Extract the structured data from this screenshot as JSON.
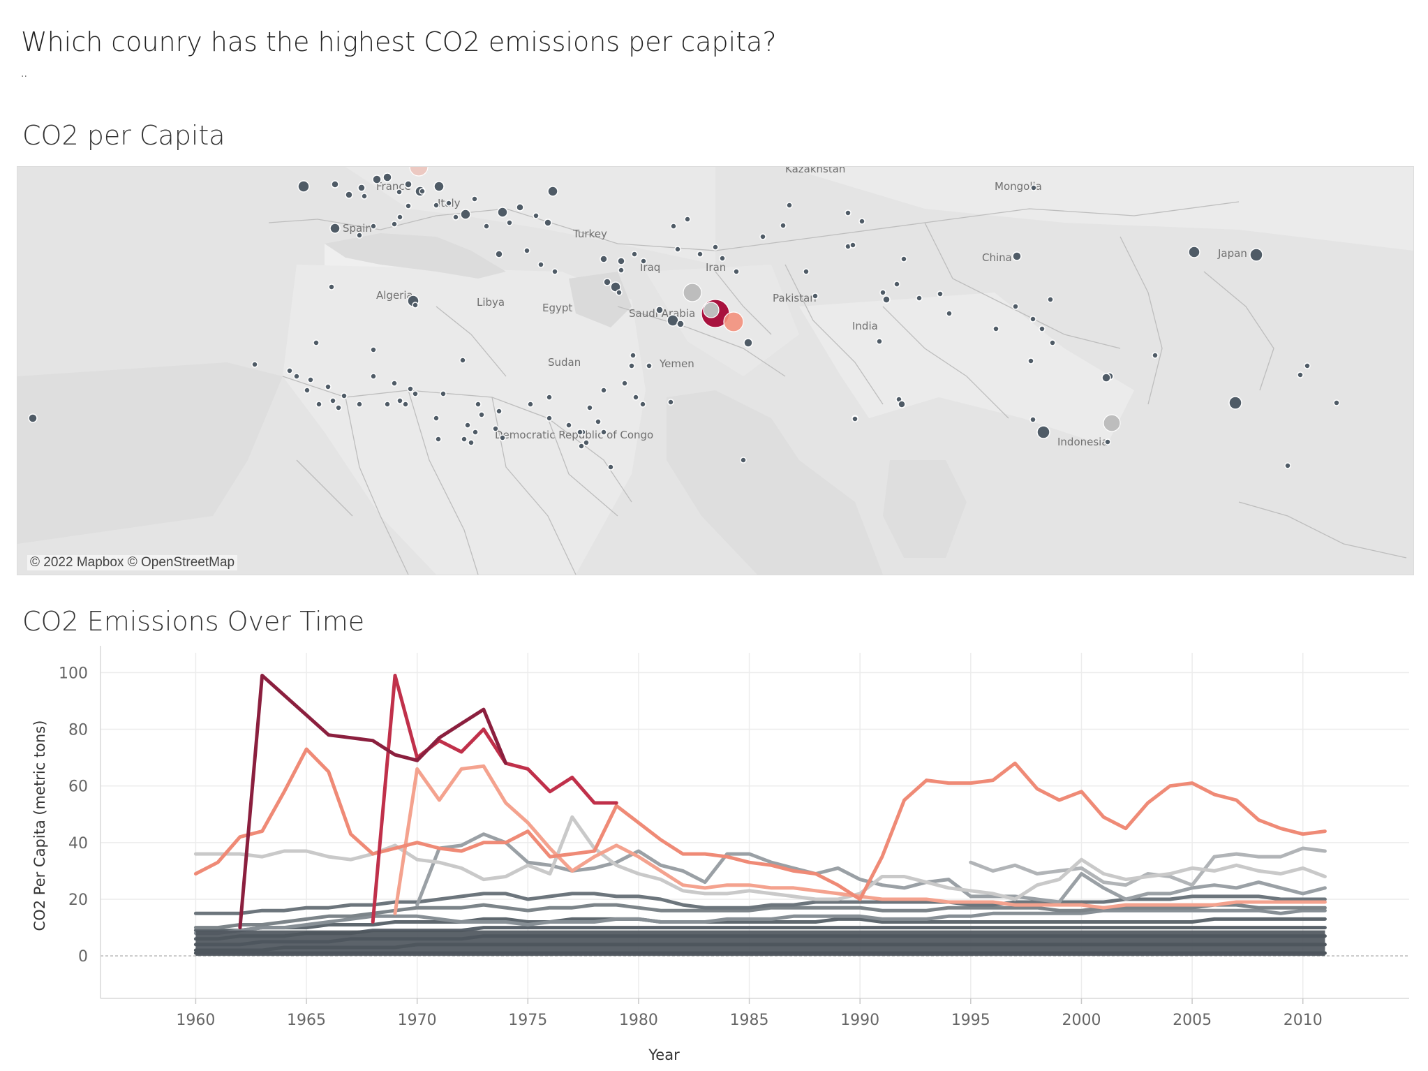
{
  "header": {
    "title": "Which counry has the highest CO2 emissions per capita?",
    "subtitle": ".."
  },
  "map": {
    "title": "CO2 per Capita",
    "attribution": "© 2022 Mapbox © OpenStreetMap",
    "labels": [
      "France",
      "Italy",
      "Spain",
      "Turkey",
      "Kazakhstan",
      "Mongolia",
      "China",
      "Japan",
      "Iraq",
      "Iran",
      "Algeria",
      "Libya",
      "Egypt",
      "Saudi Arabia",
      "Pakistan",
      "India",
      "Sudan",
      "Yemen",
      "Democratic Republic of Congo",
      "Indonesia"
    ],
    "colors": {
      "land": "#e4e4e4",
      "border": "#bdbdbd",
      "dot": "#4f5b66",
      "gray_bubble": "#bdbdbd",
      "hot": "#a8123e",
      "warm": "#f3907c"
    }
  },
  "chart_data": {
    "type": "line",
    "title": "CO2 Emissions Over Time",
    "xlabel": "Year",
    "ylabel": "CO2 Per Capita (metric tons)",
    "xlim": [
      1955.7,
      2014.8
    ],
    "ylim": [
      -15,
      107
    ],
    "xticks": [
      1960,
      1965,
      1970,
      1975,
      1980,
      1985,
      1990,
      1995,
      2000,
      2005,
      2010
    ],
    "yticks": [
      0,
      20,
      40,
      60,
      80,
      100
    ],
    "grid": true,
    "x": [
      1960,
      1961,
      1962,
      1963,
      1964,
      1965,
      1966,
      1967,
      1968,
      1969,
      1970,
      1971,
      1972,
      1973,
      1974,
      1975,
      1976,
      1977,
      1978,
      1979,
      1980,
      1981,
      1982,
      1983,
      1984,
      1985,
      1986,
      1987,
      1988,
      1989,
      1990,
      1991,
      1992,
      1993,
      1994,
      1995,
      1996,
      1997,
      1998,
      1999,
      2000,
      2001,
      2002,
      2003,
      2004,
      2005,
      2006,
      2007,
      2008,
      2009,
      2010,
      2011
    ],
    "series": [
      {
        "color": "#8b1f3e",
        "values": [
          null,
          null,
          10,
          99,
          92,
          85,
          78,
          77,
          76,
          71,
          69,
          77,
          82,
          87,
          68,
          null,
          null,
          null,
          null,
          null,
          null,
          null,
          null,
          null,
          null,
          null,
          null,
          null,
          null,
          null,
          null,
          null,
          null,
          null,
          null,
          null,
          null,
          null,
          null,
          null,
          null,
          null,
          null,
          null,
          null,
          null,
          null,
          null,
          null,
          null,
          null,
          null
        ]
      },
      {
        "color": "#c0304a",
        "values": [
          null,
          null,
          null,
          null,
          null,
          null,
          null,
          null,
          12,
          99,
          70,
          76,
          72,
          80,
          68,
          66,
          58,
          63,
          54,
          54,
          null,
          null,
          null,
          null,
          null,
          null,
          null,
          null,
          null,
          null,
          null,
          null,
          null,
          null,
          null,
          null,
          null,
          null,
          null,
          null,
          null,
          null,
          null,
          null,
          null,
          null,
          null,
          null,
          null,
          null,
          null,
          null
        ]
      },
      {
        "color": "#ef8a76",
        "values": [
          29,
          33,
          42,
          44,
          58,
          73,
          65,
          43,
          36,
          38,
          40,
          38,
          37,
          40,
          40,
          44,
          35,
          36,
          37,
          53,
          47,
          41,
          36,
          36,
          35,
          33,
          32,
          30,
          29,
          25,
          20,
          35,
          55,
          62,
          61,
          61,
          62,
          68,
          59,
          55,
          58,
          49,
          45,
          54,
          60,
          61,
          57,
          55,
          48,
          45,
          43,
          44
        ]
      },
      {
        "color": "#f4a28e",
        "values": [
          null,
          null,
          null,
          null,
          null,
          null,
          null,
          null,
          null,
          15,
          66,
          55,
          66,
          67,
          54,
          47,
          38,
          30,
          35,
          39,
          35,
          30,
          25,
          24,
          25,
          25,
          24,
          24,
          23,
          22,
          21,
          20,
          20,
          20,
          19,
          19,
          19,
          18,
          18,
          18,
          18,
          17,
          18,
          18,
          18,
          18,
          18,
          19,
          19,
          19,
          19,
          19
        ]
      },
      {
        "color": "#c9c9c9",
        "values": [
          36,
          36,
          36,
          35,
          37,
          37,
          35,
          34,
          36,
          39,
          34,
          33,
          31,
          27,
          28,
          32,
          29,
          49,
          38,
          32,
          29,
          27,
          23,
          22,
          22,
          23,
          22,
          21,
          20,
          20,
          22,
          28,
          28,
          26,
          24,
          23,
          22,
          20,
          25,
          27,
          34,
          29,
          27,
          28,
          29,
          31,
          30,
          32,
          30,
          29,
          31,
          28
        ]
      },
      {
        "color": "#b1b4b7",
        "values": [
          null,
          null,
          null,
          null,
          null,
          null,
          null,
          null,
          null,
          null,
          null,
          null,
          null,
          null,
          null,
          null,
          null,
          null,
          null,
          null,
          null,
          null,
          null,
          null,
          null,
          null,
          null,
          null,
          null,
          null,
          null,
          null,
          null,
          null,
          null,
          33,
          30,
          32,
          29,
          30,
          31,
          26,
          25,
          29,
          28,
          25,
          35,
          36,
          35,
          35,
          38,
          37
        ]
      },
      {
        "color": "#9aa0a5",
        "values": [
          null,
          null,
          null,
          null,
          null,
          null,
          null,
          null,
          null,
          null,
          18,
          38,
          39,
          43,
          40,
          33,
          32,
          30,
          31,
          33,
          37,
          32,
          30,
          26,
          36,
          36,
          33,
          31,
          29,
          31,
          27,
          25,
          24,
          26,
          27,
          21,
          21,
          21,
          20,
          19,
          29,
          24,
          20,
          22,
          22,
          24,
          25,
          24,
          26,
          24,
          22,
          24
        ]
      },
      {
        "color": "#6c757c",
        "values": [
          15,
          15,
          15,
          16,
          16,
          17,
          17,
          18,
          18,
          19,
          19,
          20,
          21,
          22,
          22,
          20,
          21,
          22,
          22,
          21,
          21,
          20,
          18,
          17,
          17,
          17,
          18,
          18,
          19,
          19,
          19,
          19,
          19,
          19,
          19,
          18,
          18,
          19,
          19,
          19,
          19,
          19,
          20,
          20,
          20,
          21,
          21,
          21,
          21,
          20,
          20,
          20
        ]
      },
      {
        "color": "#7c8489",
        "values": [
          10,
          10,
          11,
          11,
          12,
          13,
          14,
          14,
          15,
          16,
          17,
          17,
          17,
          18,
          17,
          16,
          17,
          17,
          18,
          18,
          17,
          16,
          16,
          16,
          16,
          16,
          17,
          17,
          17,
          17,
          17,
          16,
          16,
          16,
          17,
          17,
          17,
          17,
          17,
          16,
          16,
          17,
          17,
          17,
          17,
          17,
          18,
          18,
          17,
          17,
          17,
          17
        ]
      },
      {
        "color": "#878f95",
        "values": [
          8,
          8,
          9,
          10,
          10,
          11,
          12,
          13,
          14,
          14,
          14,
          13,
          12,
          12,
          12,
          11,
          12,
          12,
          12,
          13,
          13,
          12,
          12,
          12,
          13,
          13,
          13,
          14,
          14,
          14,
          14,
          13,
          13,
          13,
          14,
          14,
          15,
          15,
          15,
          15,
          15,
          16,
          16,
          16,
          16,
          16,
          16,
          16,
          16,
          15,
          16,
          16
        ]
      },
      {
        "color": "#5e676e",
        "values": [
          9,
          9,
          9,
          10,
          10,
          10,
          11,
          11,
          11,
          12,
          12,
          12,
          12,
          13,
          13,
          12,
          12,
          13,
          13,
          13,
          13,
          12,
          12,
          12,
          12,
          12,
          12,
          12,
          12,
          13,
          13,
          12,
          12,
          12,
          12,
          12,
          12,
          12,
          12,
          12,
          12,
          12,
          12,
          12,
          12,
          12,
          13,
          13,
          13,
          13,
          13,
          13
        ]
      },
      {
        "color": "#59626a",
        "values": [
          6,
          6,
          7,
          7,
          7,
          8,
          8,
          8,
          9,
          9,
          9,
          9,
          9,
          10,
          10,
          10,
          10,
          10,
          10,
          10,
          10,
          10,
          10,
          10,
          10,
          10,
          10,
          10,
          10,
          10,
          10,
          10,
          10,
          10,
          10,
          10,
          10,
          10,
          10,
          10,
          10,
          10,
          10,
          10,
          10,
          10,
          10,
          10,
          10,
          10,
          10,
          10
        ]
      },
      {
        "color": "#545c63",
        "values": [
          4,
          4,
          4,
          5,
          5,
          5,
          5,
          6,
          6,
          6,
          6,
          6,
          6,
          7,
          7,
          7,
          7,
          7,
          7,
          7,
          7,
          7,
          7,
          7,
          7,
          7,
          7,
          7,
          7,
          7,
          7,
          7,
          7,
          7,
          7,
          7,
          7,
          7,
          7,
          7,
          7,
          7,
          7,
          7,
          7,
          7,
          7,
          7,
          7,
          7,
          7,
          7
        ]
      },
      {
        "color": "#4f575e",
        "values": [
          2,
          2,
          2,
          2,
          3,
          3,
          3,
          3,
          3,
          3,
          4,
          4,
          4,
          4,
          4,
          4,
          4,
          4,
          4,
          4,
          4,
          4,
          4,
          4,
          4,
          4,
          4,
          4,
          4,
          4,
          4,
          4,
          4,
          4,
          4,
          4,
          4,
          4,
          4,
          4,
          4,
          4,
          4,
          4,
          4,
          4,
          4,
          4,
          4,
          4,
          4,
          4
        ]
      },
      {
        "color": "#4b535a",
        "values": [
          1,
          1,
          1,
          1,
          1,
          1,
          1,
          1,
          1,
          1,
          1,
          1,
          1,
          1,
          1,
          1,
          1,
          1,
          1,
          1,
          1,
          1,
          1,
          1,
          1,
          1,
          1,
          1,
          1,
          1,
          1,
          1,
          1,
          1,
          1,
          1,
          1,
          1,
          1,
          1,
          1,
          1,
          1,
          1,
          1,
          1,
          1,
          1,
          1,
          1,
          1,
          1
        ]
      }
    ]
  }
}
